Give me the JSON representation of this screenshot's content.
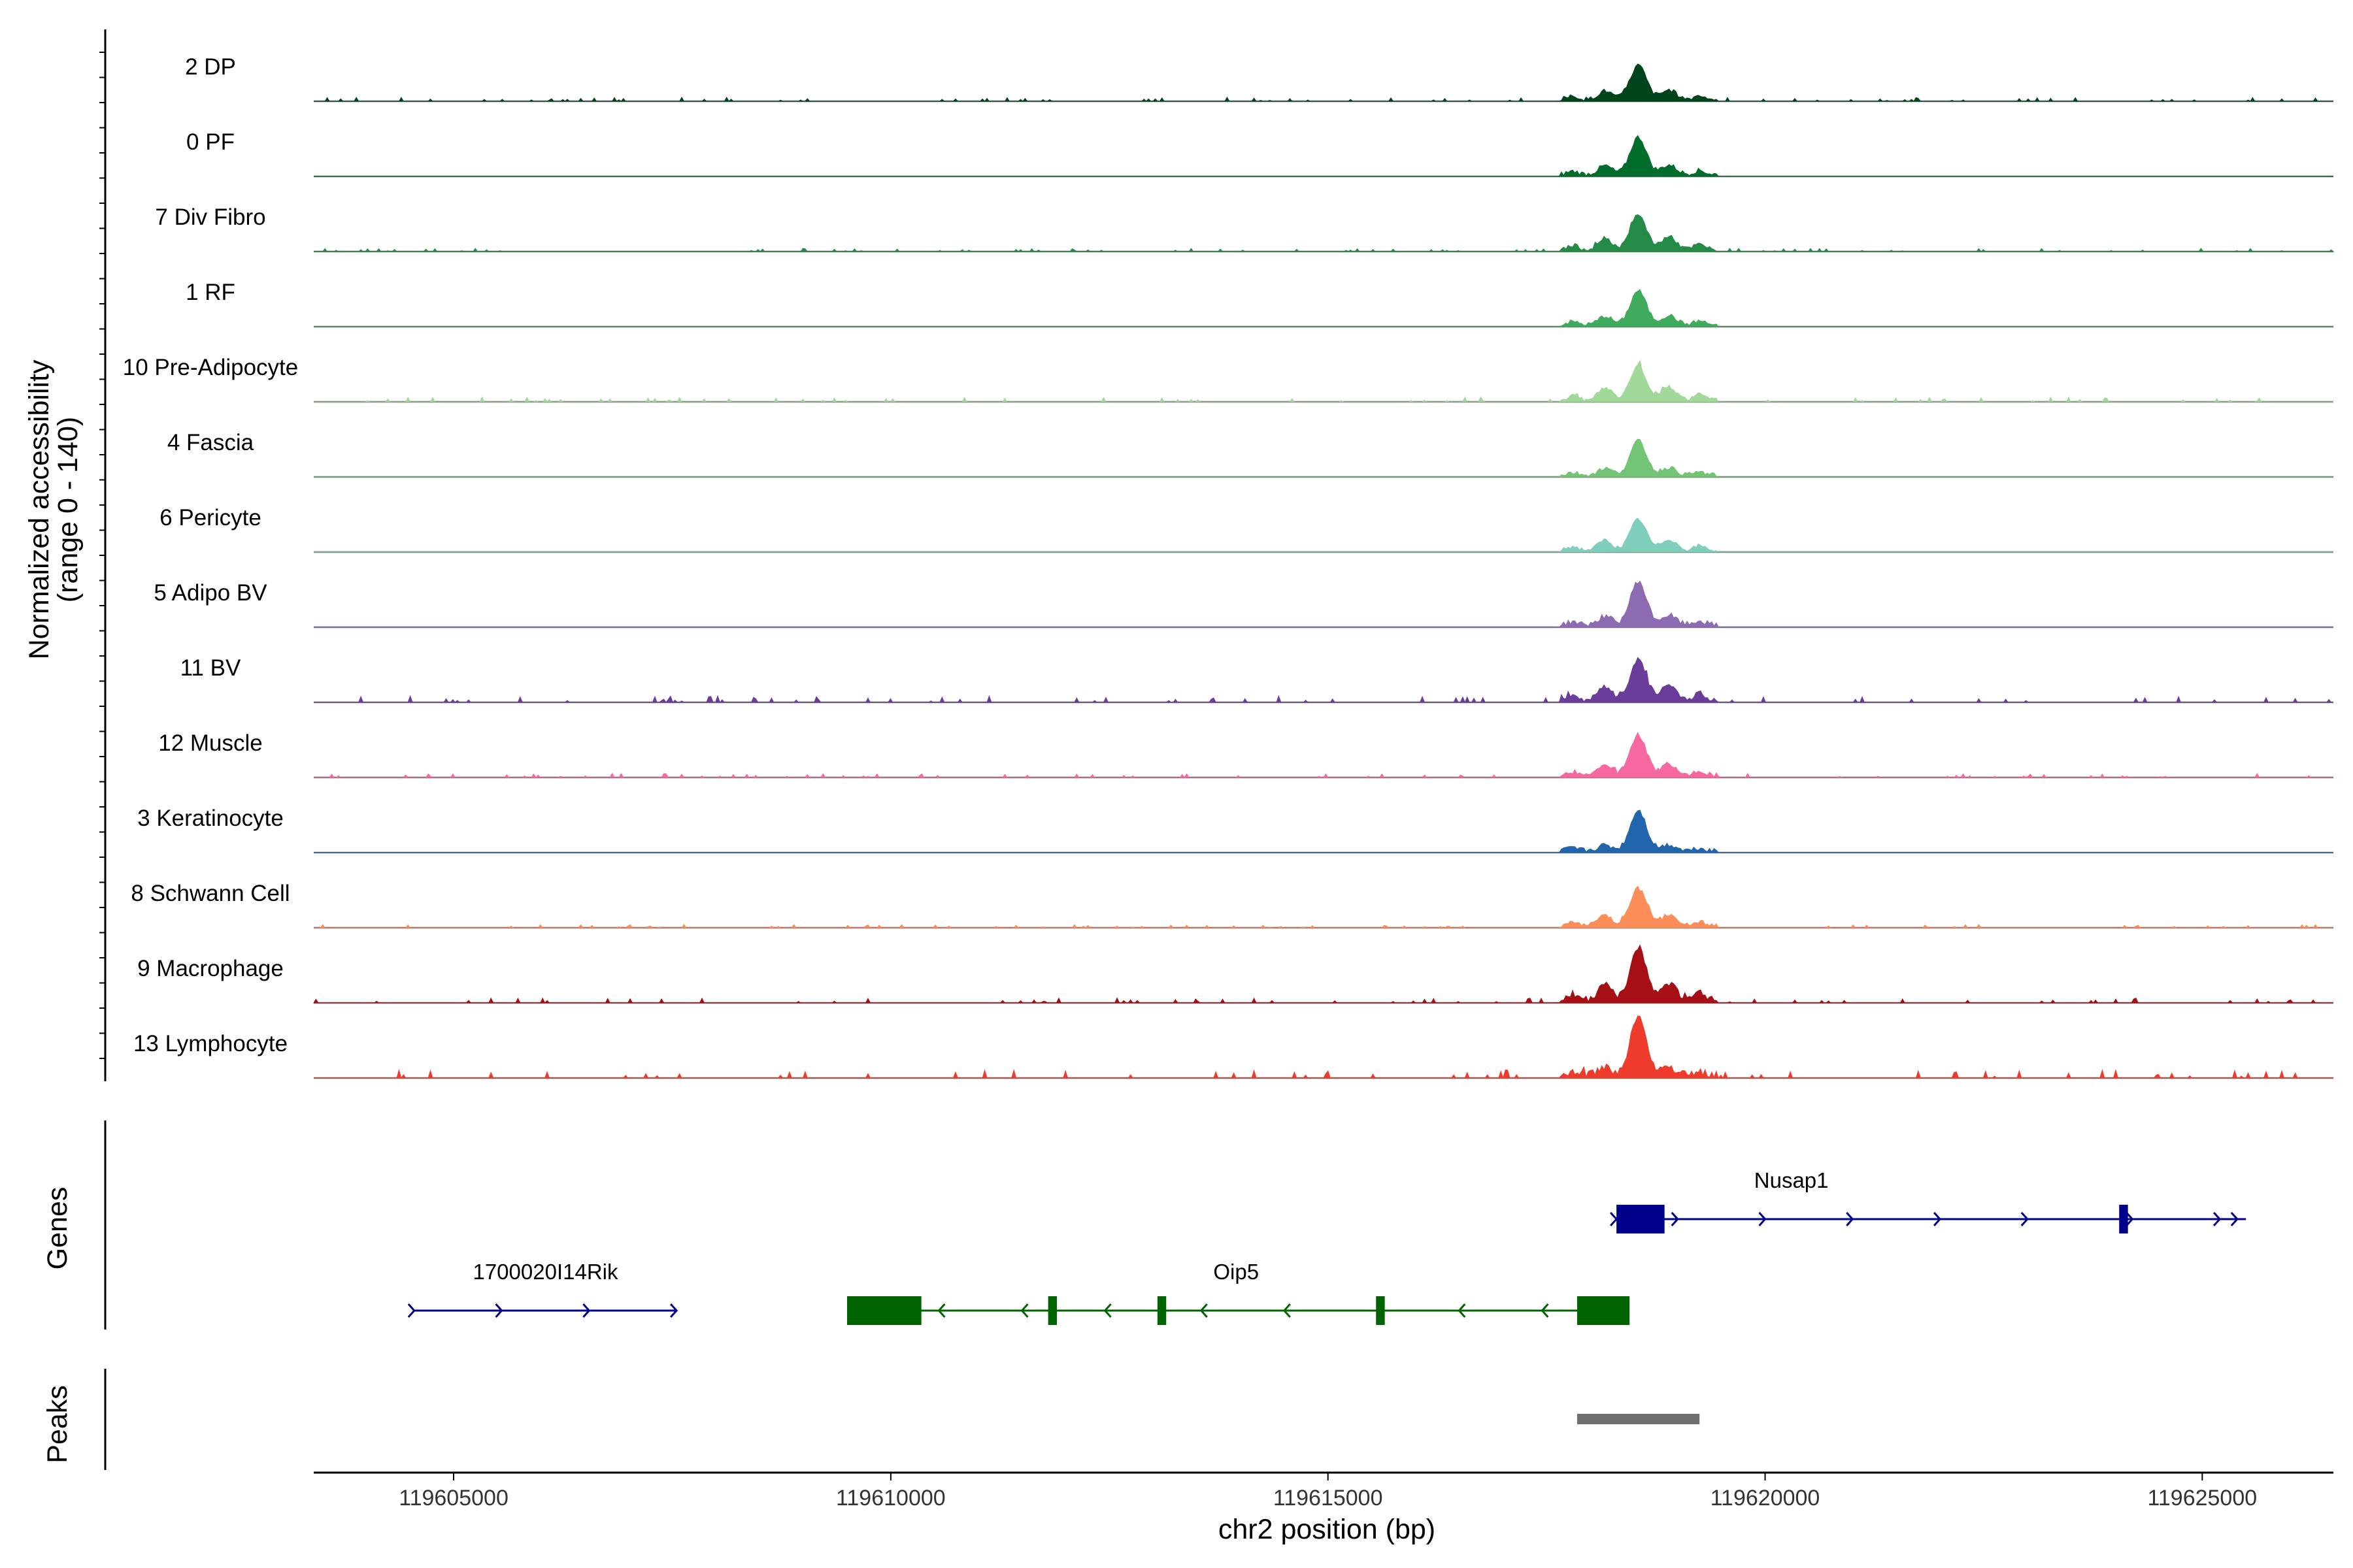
{
  "chart_data": {
    "type": "area",
    "title": "",
    "xlabel": "chr2 position (bp)",
    "ylabel_line1": "Normalized accessibility",
    "ylabel_line2": "(range 0 - 140)",
    "genes_label": "Genes",
    "peaks_label": "Peaks",
    "xlim": [
      119603400,
      119626500
    ],
    "ylim": [
      0,
      140
    ],
    "x_ticks": [
      119605000,
      119610000,
      119615000,
      119620000,
      119625000
    ],
    "x_tick_labels": [
      "119605000",
      "119610000",
      "119615000",
      "119620000",
      "119625000"
    ],
    "tracks": [
      {
        "name": "2 DP",
        "color": "#00441b",
        "main_peak": 0.55,
        "side": 0.25,
        "noise": 0.05
      },
      {
        "name": "0 PF",
        "color": "#006d2c",
        "main_peak": 0.6,
        "side": 0.25,
        "noise": 0.0
      },
      {
        "name": "7 Div Fibro",
        "color": "#238b45",
        "main_peak": 0.55,
        "side": 0.35,
        "noise": 0.04
      },
      {
        "name": "1 RF",
        "color": "#41ab5d",
        "main_peak": 0.55,
        "side": 0.25,
        "noise": 0.0
      },
      {
        "name": "10 Pre-Adipocyte",
        "color": "#a1d99b",
        "main_peak": 0.55,
        "side": 0.35,
        "noise": 0.06
      },
      {
        "name": "4 Fascia",
        "color": "#74c476",
        "main_peak": 0.55,
        "side": 0.2,
        "noise": 0.0
      },
      {
        "name": "6 Pericyte",
        "color": "#7fcdbb",
        "main_peak": 0.5,
        "side": 0.3,
        "noise": 0.0
      },
      {
        "name": "5 Adipo BV",
        "color": "#8c6bb1",
        "main_peak": 0.7,
        "side": 0.25,
        "noise": 0.0
      },
      {
        "name": "11 BV",
        "color": "#6a3d9a",
        "main_peak": 0.65,
        "side": 0.4,
        "noise": 0.08
      },
      {
        "name": "12 Muscle",
        "color": "#f768a1",
        "main_peak": 0.65,
        "side": 0.3,
        "noise": 0.05
      },
      {
        "name": "3 Keratinocyte",
        "color": "#2166ac",
        "main_peak": 0.65,
        "side": 0.15,
        "noise": 0.0
      },
      {
        "name": "8 Schwann Cell",
        "color": "#fc8d59",
        "main_peak": 0.6,
        "side": 0.3,
        "noise": 0.04
      },
      {
        "name": "9 Macrophage",
        "color": "#a50f15",
        "main_peak": 0.85,
        "side": 0.45,
        "noise": 0.06
      },
      {
        "name": "13 Lymphocyte",
        "color": "#ef3b2c",
        "main_peak": 0.95,
        "side": 0.2,
        "noise": 0.1
      }
    ],
    "genes": [
      {
        "name": "Nusap1",
        "strand": "+",
        "color": "#00008b",
        "row": 0,
        "start": 119618300,
        "end": 119625500,
        "exons": [
          [
            119618300,
            119618850
          ],
          [
            119624050,
            119624150
          ]
        ],
        "arrows": [
          119618300,
          119619000,
          119620000,
          119621000,
          119622000,
          119623000,
          119624200,
          119625200,
          119625400
        ]
      },
      {
        "name": "1700020I14Rik",
        "strand": "+",
        "color": "#00008b",
        "row": 1,
        "start": 119604550,
        "end": 119607550,
        "exons": [],
        "arrows": [
          119604550,
          119605550,
          119606550,
          119607550
        ]
      },
      {
        "name": "Oip5",
        "strand": "-",
        "color": "#006400",
        "row": 1,
        "start": 119609500,
        "end": 119618400,
        "exons": [
          [
            119609500,
            119610350
          ],
          [
            119611800,
            119611900
          ],
          [
            119613050,
            119613150
          ],
          [
            119615550,
            119615650
          ],
          [
            119617850,
            119618450
          ]
        ],
        "arrows": [
          119610550,
          119611500,
          119612450,
          119613550,
          119614500,
          119616500,
          119617450
        ]
      }
    ],
    "peaks": [
      [
        119617850,
        119619250
      ]
    ],
    "peak_color": "#707070"
  }
}
